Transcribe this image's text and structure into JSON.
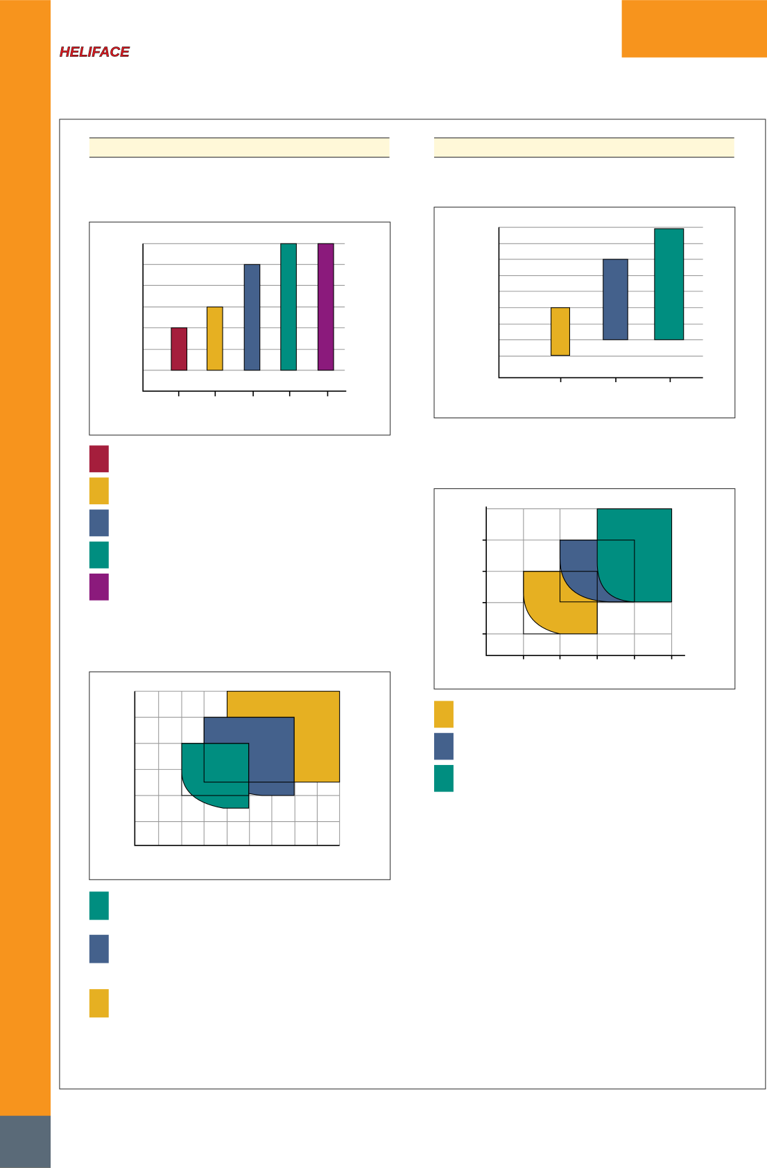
{
  "header": {
    "logo": "HELIFACE"
  }
}
